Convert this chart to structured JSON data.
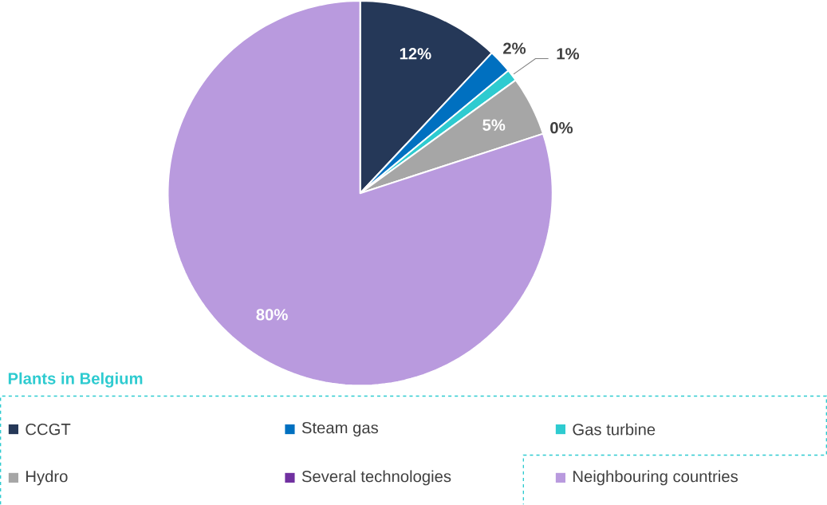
{
  "chart_data": {
    "type": "pie",
    "legend_title": "Plants in Belgium",
    "legend": "bottom",
    "categories": [
      "CCGT",
      "Steam gas",
      "Gas turbine",
      "Hydro",
      "Several technologies",
      "Neighbouring countries"
    ],
    "values": [
      12,
      2,
      1,
      5,
      0,
      80
    ],
    "value_labels": [
      "12%",
      "2%",
      "1%",
      "5%",
      "0%",
      "80%"
    ],
    "colors": [
      "#253858",
      "#0070c0",
      "#2ecbd0",
      "#a6a6a6",
      "#7030a0",
      "#b99ade"
    ]
  }
}
